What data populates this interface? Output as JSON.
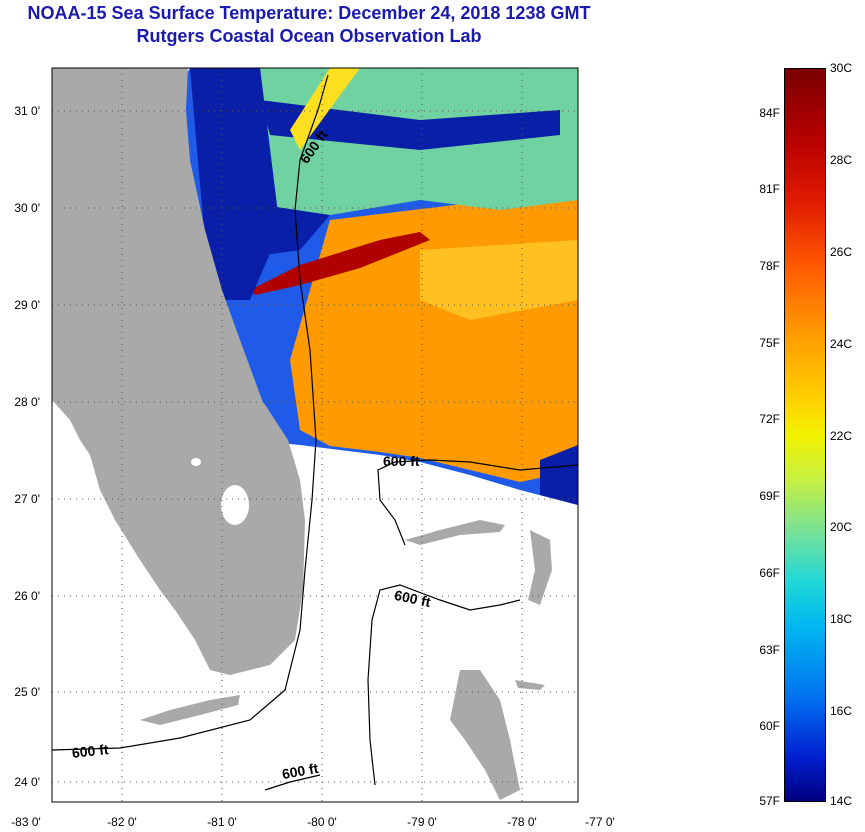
{
  "title": {
    "line1": "NOAA-15 Sea Surface Temperature:  December 24, 2018 1238 GMT",
    "line2": "Rutgers Coastal Ocean Observation Lab"
  },
  "map": {
    "lat_labels": [
      "31 0'",
      "30 0'",
      "29 0'",
      "28 0'",
      "27 0'",
      "26 0'",
      "25 0'",
      "24 0'"
    ],
    "lon_labels": [
      "-83 0'",
      "-82 0'",
      "-81 0'",
      "-80 0'",
      "-79 0'",
      "-78 0'",
      "-77 0'"
    ],
    "contour_labels": [
      "600 ft",
      "600 ft",
      "600 ft",
      "600 ft",
      "600 ft"
    ],
    "colors": {
      "land": "#a9a9a9",
      "no_data": "#ffffff",
      "cold": "#0010a0",
      "warm": "#ff9a00",
      "hot": "#b00000",
      "title": "#1a1ab0"
    }
  },
  "colorbar": {
    "fahrenheit": [
      "84F",
      "81F",
      "78F",
      "75F",
      "72F",
      "69F",
      "66F",
      "63F",
      "60F",
      "57F"
    ],
    "celsius": [
      "30C",
      "28C",
      "26C",
      "24C",
      "22C",
      "20C",
      "18C",
      "16C",
      "14C"
    ],
    "range_c": [
      14,
      30
    ],
    "range_f": [
      57,
      86
    ]
  }
}
